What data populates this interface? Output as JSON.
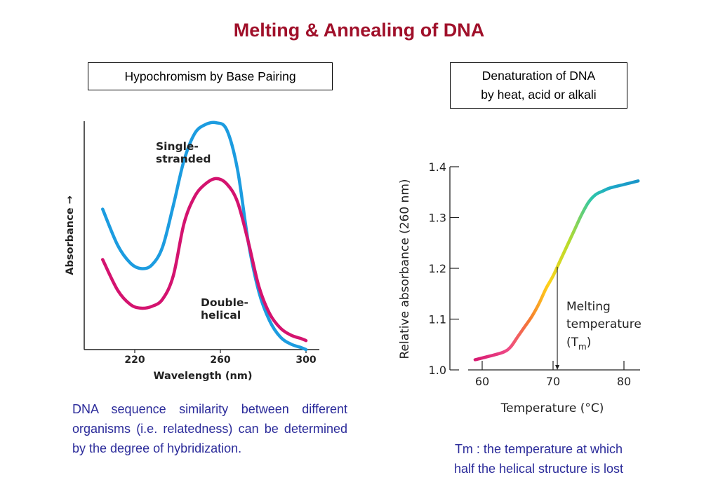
{
  "title": "Melting & Annealing of DNA",
  "left_box": "Hypochromism by Base Pairing",
  "right_box": [
    "Denaturation of DNA",
    "by heat, acid or alkali"
  ],
  "left_text": "DNA sequence similarity between different organisms (i.e. relatedness) can be determined by the degree of hybridization.",
  "right_text": [
    "Tm : the temperature at which",
    "half the helical structure is lost"
  ],
  "chart_data": [
    {
      "type": "line",
      "xlabel": "Wavelength (nm)",
      "ylabel": "Absorbance →",
      "xlim": [
        200,
        305
      ],
      "x_ticks": [
        220,
        260,
        300
      ],
      "series": [
        {
          "name": "Single-stranded",
          "color": "#1c9ce0",
          "x": [
            205,
            212,
            218,
            223,
            228,
            233,
            238,
            243,
            248,
            253,
            258,
            263,
            268,
            273,
            278,
            283,
            288,
            293,
            298,
            300
          ],
          "y": [
            0.78,
            0.58,
            0.48,
            0.45,
            0.47,
            0.57,
            0.8,
            1.05,
            1.2,
            1.25,
            1.26,
            1.22,
            1.0,
            0.6,
            0.32,
            0.16,
            0.07,
            0.03,
            0.01,
            0.0
          ]
        },
        {
          "name": "Double-helical",
          "color": "#d4136f",
          "x": [
            205,
            212,
            218,
            223,
            228,
            233,
            238,
            243,
            248,
            253,
            258,
            263,
            268,
            273,
            278,
            283,
            288,
            293,
            298,
            300
          ],
          "y": [
            0.5,
            0.33,
            0.25,
            0.23,
            0.24,
            0.28,
            0.41,
            0.7,
            0.85,
            0.92,
            0.95,
            0.92,
            0.82,
            0.6,
            0.35,
            0.2,
            0.12,
            0.08,
            0.06,
            0.05
          ]
        }
      ]
    },
    {
      "type": "line",
      "xlabel": "Temperature (°C)",
      "ylabel": "Relative absorbance (260 nm)",
      "xlim": [
        58,
        83
      ],
      "ylim": [
        1.0,
        1.4
      ],
      "x_ticks": [
        60,
        70,
        80
      ],
      "y_ticks": [
        1.0,
        1.1,
        1.2,
        1.3,
        1.4
      ],
      "series": [
        {
          "name": "",
          "x": [
            59,
            61,
            63,
            64,
            65,
            66,
            67,
            68,
            69,
            70,
            71,
            72,
            73,
            74,
            75,
            76,
            77,
            78,
            80,
            82
          ],
          "y": [
            1.02,
            1.027,
            1.035,
            1.045,
            1.065,
            1.085,
            1.105,
            1.13,
            1.16,
            1.185,
            1.215,
            1.245,
            1.275,
            1.305,
            1.33,
            1.345,
            1.352,
            1.358,
            1.365,
            1.372
          ]
        }
      ],
      "annotation": {
        "text": [
          "Melting",
          "temperature",
          "(T",
          "m",
          ")"
        ],
        "x": 70.6
      }
    }
  ]
}
